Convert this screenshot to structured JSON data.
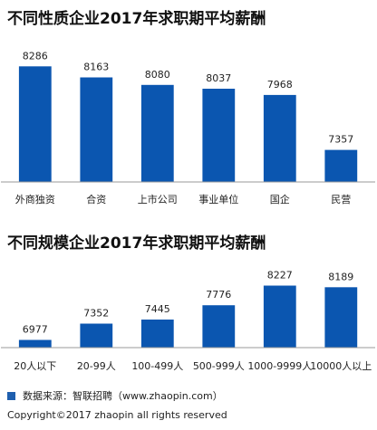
{
  "colors": {
    "bar": "#0b56b0",
    "axis": "#9a9a9a"
  },
  "chart_data": [
    {
      "type": "bar",
      "title": "不同性质企业2017年求职期平均薪酬",
      "categories": [
        "外商独资",
        "合资",
        "上市公司",
        "事业单位",
        "国企",
        "民营"
      ],
      "values": [
        8286,
        8163,
        8080,
        8037,
        7968,
        7357
      ],
      "ylim": [
        7000,
        8400
      ],
      "grid": false
    },
    {
      "type": "bar",
      "title": "不同规模企业2017年求职期平均薪酬",
      "categories": [
        "20人以下",
        "20-99人",
        "100-499人",
        "500-999人",
        "1000-9999人",
        "10000人以上"
      ],
      "values": [
        6977,
        7352,
        7445,
        7776,
        8227,
        8189
      ],
      "ylim": [
        6800,
        8300
      ],
      "grid": false
    }
  ],
  "footer": {
    "source": "数据来源：智联招聘（www.zhaopin.com）",
    "copyright": "Copyright©2017 zhaopin all rights reserved"
  }
}
